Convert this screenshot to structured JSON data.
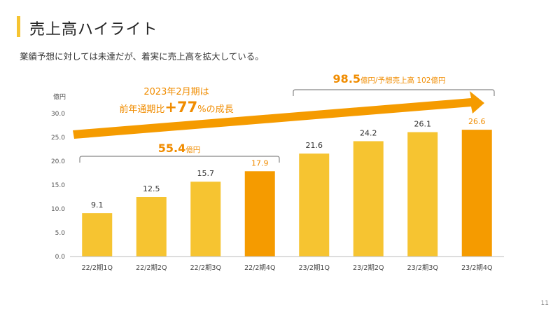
{
  "header": {
    "title": "売上高ハイライト",
    "subtitle": "業績予想に対しては未達だが、着実に売上高を拡大している。"
  },
  "annotations": {
    "growth_line1": "2023年2月期は",
    "growth_line2_prefix": "前年通期比",
    "growth_line2_value": "+77",
    "growth_line2_suffix": "%の成長",
    "fy22_total_value": "55.4",
    "fy22_total_unit": "億円",
    "fy23_total_value": "98.5",
    "fy23_total_unit": "億円",
    "fy23_forecast": "/予想売上高 102億円"
  },
  "colors": {
    "bar": "#f6c431",
    "bar_highlight": "#f59b00",
    "accent_text": "#f08c00",
    "arrow": "#f59b00",
    "bracket": "#888888"
  },
  "chart_data": {
    "type": "bar",
    "ylabel": "億円",
    "ylim": [
      0,
      30
    ],
    "yticks": [
      "0.0",
      "5.0",
      "10.0",
      "15.0",
      "20.0",
      "25.0",
      "30.0"
    ],
    "categories": [
      "22/2期1Q",
      "22/2期2Q",
      "22/2期3Q",
      "22/2期4Q",
      "23/2期1Q",
      "23/2期2Q",
      "23/2期3Q",
      "23/2期4Q"
    ],
    "values": [
      9.1,
      12.5,
      15.7,
      17.9,
      21.6,
      24.2,
      26.1,
      26.6
    ],
    "labels": [
      "9.1",
      "12.5",
      "15.7",
      "17.9",
      "21.6",
      "24.2",
      "26.1",
      "26.6"
    ],
    "highlight": [
      false,
      false,
      false,
      true,
      false,
      false,
      false,
      true
    ]
  },
  "footer": {
    "page": "11"
  }
}
